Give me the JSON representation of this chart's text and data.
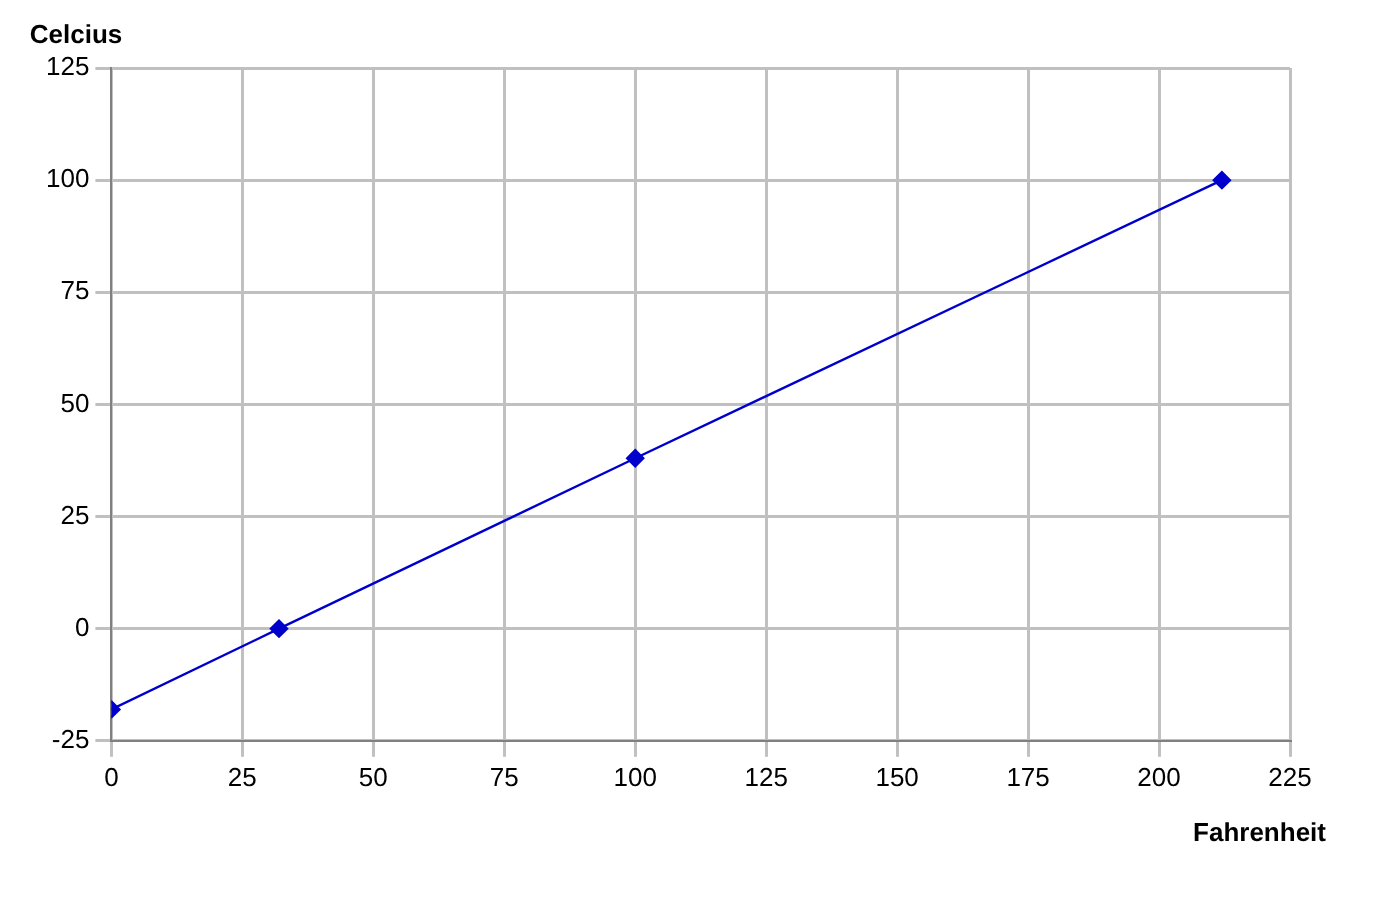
{
  "chart_data": {
    "type": "line",
    "xlabel": "Fahrenheit",
    "ylabel": "Celcius",
    "x": [
      0,
      32,
      100,
      212
    ],
    "series": [
      {
        "color": "#0000cc",
        "values": [
          -18,
          0,
          38,
          100
        ]
      }
    ],
    "xlim": [
      0,
      225
    ],
    "xticks": [
      0,
      25,
      50,
      75,
      100,
      125,
      150,
      175,
      200,
      225
    ],
    "ylim": [
      -25,
      125
    ],
    "yticks": [
      -25,
      0,
      25,
      50,
      75,
      100,
      125
    ],
    "grid": true,
    "legend": false,
    "marker": "diamond",
    "line_style": "solid"
  }
}
